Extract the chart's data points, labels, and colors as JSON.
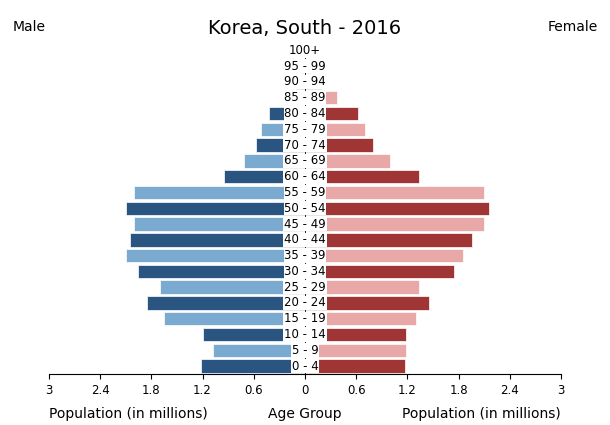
{
  "title": "Korea, South - 2016",
  "xlabel_left": "Population (in millions)",
  "xlabel_center": "Age Group",
  "xlabel_right": "Population (in millions)",
  "label_left": "Male",
  "label_right": "Female",
  "age_groups": [
    "0 - 4",
    "5 - 9",
    "10 - 14",
    "15 - 19",
    "20 - 24",
    "25 - 29",
    "30 - 34",
    "35 - 39",
    "40 - 44",
    "45 - 49",
    "50 - 54",
    "55 - 59",
    "60 - 64",
    "65 - 69",
    "70 - 74",
    "75 - 79",
    "80 - 84",
    "85 - 89",
    "90 - 94",
    "95 - 99",
    "100+"
  ],
  "male_values": [
    1.22,
    1.08,
    1.2,
    1.65,
    1.85,
    1.7,
    1.95,
    2.1,
    2.05,
    2.0,
    2.1,
    2.0,
    0.95,
    0.72,
    0.57,
    0.52,
    0.42,
    0.17,
    0.1,
    0.04,
    0.01
  ],
  "female_values": [
    1.17,
    1.18,
    1.18,
    1.3,
    1.45,
    1.33,
    1.75,
    1.85,
    1.95,
    2.1,
    2.15,
    2.1,
    1.33,
    1.0,
    0.8,
    0.7,
    0.62,
    0.37,
    0.19,
    0.07,
    0.02
  ],
  "male_dark": "#2a5580",
  "male_light": "#7aaacf",
  "female_dark": "#a03535",
  "female_light": "#e8a8a8",
  "xlim": 3.0,
  "background_color": "#ffffff",
  "title_fontsize": 14,
  "label_fontsize": 10,
  "tick_fontsize": 8.5,
  "bar_height": 0.85
}
